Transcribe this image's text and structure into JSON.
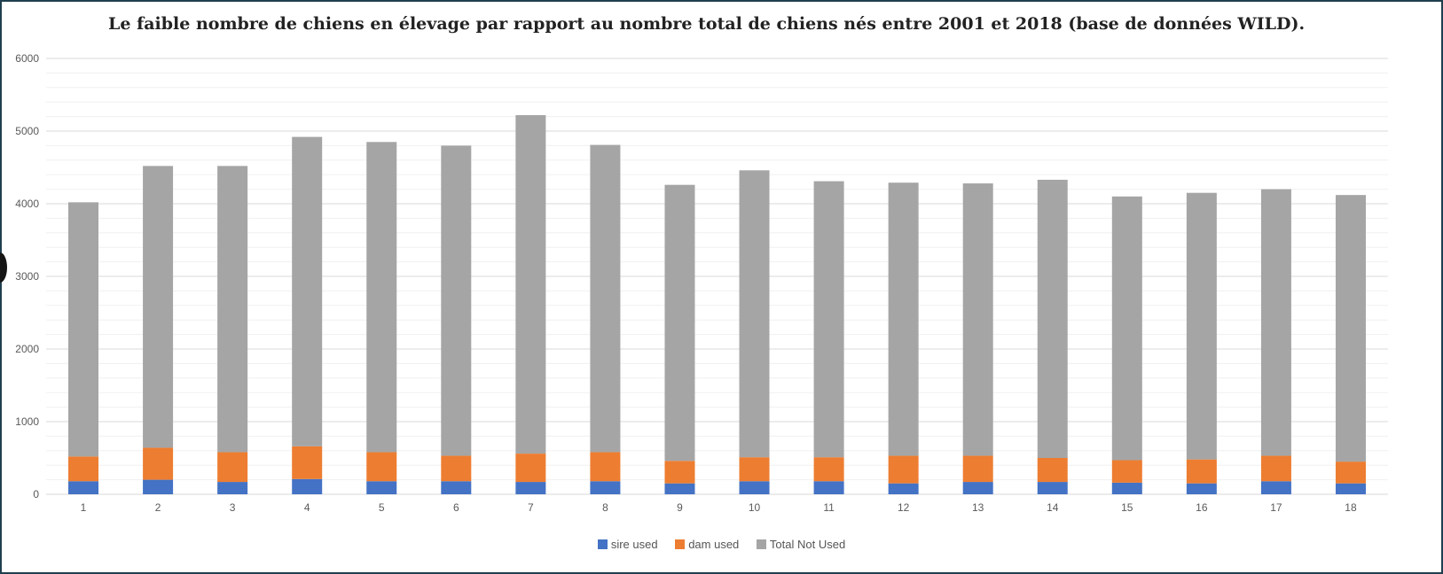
{
  "chart_data": {
    "type": "bar",
    "stacked": true,
    "title": "Le faible nombre de chiens en élevage par rapport au nombre total de chiens nés entre 2001 et 2018 (base de données WILD).",
    "categories": [
      "1",
      "2",
      "3",
      "4",
      "5",
      "6",
      "7",
      "8",
      "9",
      "10",
      "11",
      "12",
      "13",
      "14",
      "15",
      "16",
      "17",
      "18"
    ],
    "series": [
      {
        "name": "sire used",
        "color": "#4472c4",
        "values": [
          180,
          200,
          170,
          210,
          180,
          180,
          170,
          180,
          150,
          180,
          180,
          150,
          170,
          170,
          160,
          150,
          180,
          150
        ]
      },
      {
        "name": "dam used",
        "color": "#ed7d31",
        "values": [
          340,
          440,
          410,
          450,
          400,
          350,
          390,
          400,
          310,
          330,
          330,
          380,
          360,
          330,
          310,
          330,
          350,
          300
        ]
      },
      {
        "name": "Total Not Used",
        "color": "#a5a5a5",
        "values": [
          3500,
          3880,
          3940,
          4260,
          4270,
          4270,
          4660,
          4230,
          3800,
          3950,
          3800,
          3760,
          3750,
          3830,
          3630,
          3670,
          3670,
          3670
        ]
      }
    ],
    "yticks": [
      "0",
      "1000",
      "2000",
      "3000",
      "4000",
      "5000",
      "6000"
    ],
    "ylim": [
      0,
      6000
    ],
    "grid": true,
    "legend_position": "bottom"
  }
}
